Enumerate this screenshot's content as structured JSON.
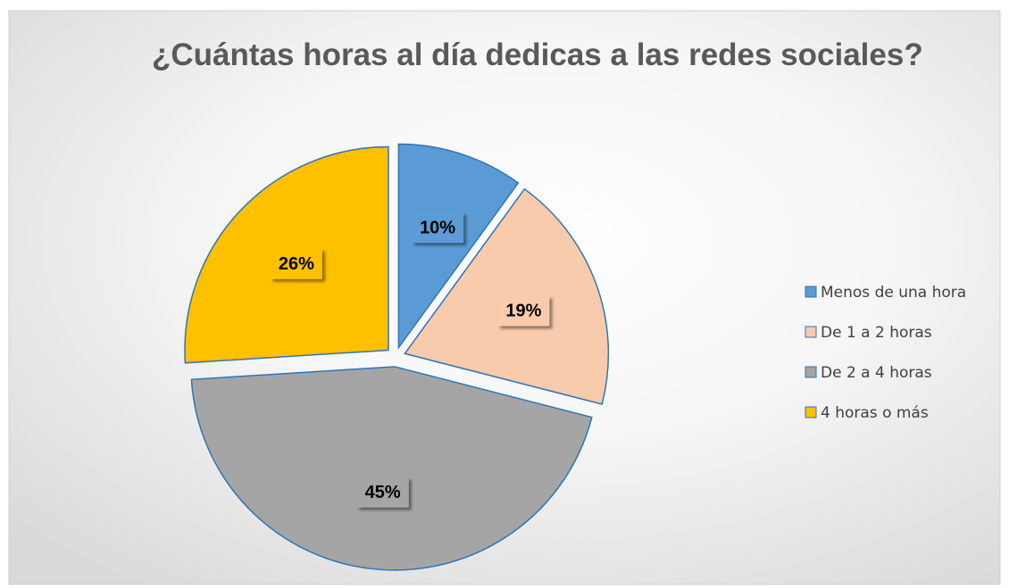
{
  "chart_data": {
    "type": "pie",
    "title": "¿Cuántas horas al día  dedicas a las redes sociales?",
    "categories": [
      "Menos de una hora",
      "De 1 a 2 horas",
      "De 2 a 4 horas",
      "4 horas o más"
    ],
    "values": [
      10,
      19,
      45,
      26
    ],
    "value_labels": [
      "10%",
      "19%",
      "45%",
      "26%"
    ],
    "colors": [
      "#5b9bd5",
      "#f8cbad",
      "#a5a5a5",
      "#ffc000"
    ],
    "legend": "right"
  }
}
